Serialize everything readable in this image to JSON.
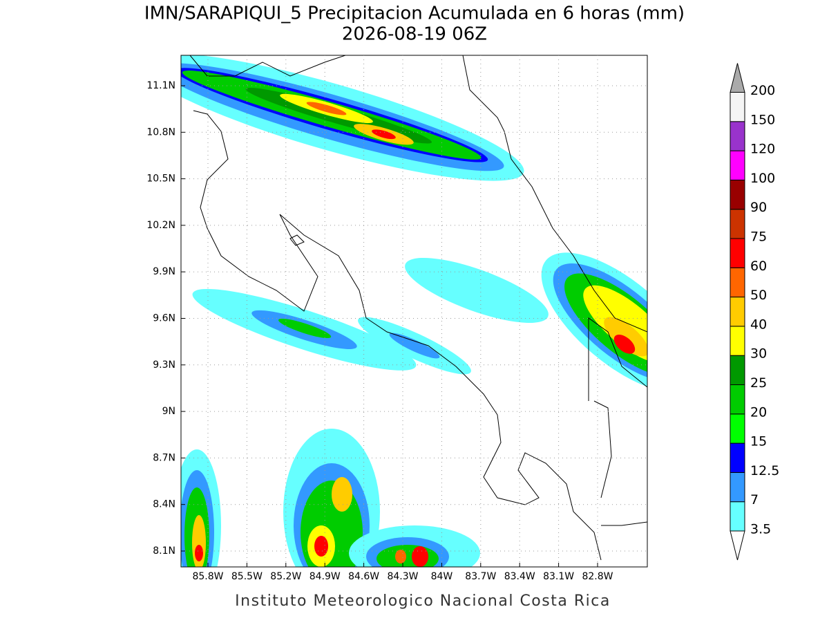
{
  "title": "IMN/SARAPIQUI_5 Precipitacion Acumulada en 6 horas (mm)",
  "subtitle": "2026-08-19 06Z",
  "map": {
    "lat_ticks": [
      "11.1N",
      "10.8N",
      "10.5N",
      "10.2N",
      "9.9N",
      "9.6N",
      "9.3N",
      "9N",
      "8.7N",
      "8.4N",
      "8.1N"
    ],
    "lon_ticks": [
      "85.8W",
      "85.5W",
      "85.2W",
      "84.9W",
      "84.6W",
      "84.3W",
      "84W",
      "83.7W",
      "83.4W",
      "83.1W",
      "82.8W"
    ]
  },
  "colorbar": {
    "levels": [
      3.5,
      7,
      12.5,
      15,
      20,
      25,
      30,
      40,
      50,
      60,
      75,
      90,
      100,
      120,
      150,
      200
    ],
    "colors": [
      "#66ffff",
      "#3399ff",
      "#0000ff",
      "#00ff00",
      "#00cc00",
      "#009900",
      "#ffff00",
      "#ffcc00",
      "#ff6600",
      "#ff0000",
      "#cc3300",
      "#990000",
      "#ff00ff",
      "#9933cc",
      "#f5f5f5"
    ],
    "under_color": "#ffffff",
    "over_color": "#aaaaaa"
  },
  "footer": "Instituto Meteorologico Nacional Costa Rica"
}
